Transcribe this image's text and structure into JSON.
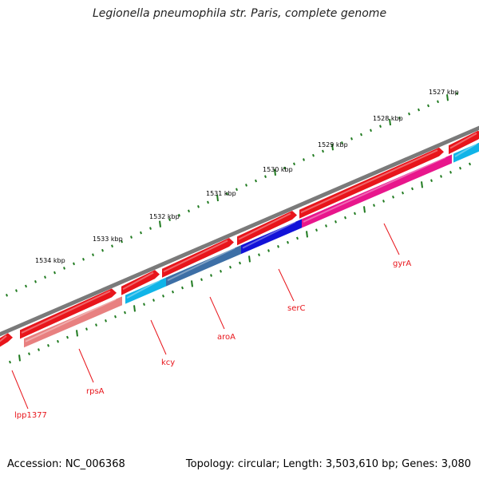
{
  "title": "Legionella pneumophila str. Paris, complete genome",
  "footer": {
    "accession": "Accession: NC_006368",
    "summary": "Topology: circular; Length: 3,503,610 bp; Genes: 3,080"
  },
  "scale": {
    "unit": "kbp",
    "labels": [
      "1527 kbp",
      "1528 kbp",
      "1529 kbp",
      "1530 kbp",
      "1531 kbp",
      "1532 kbp",
      "1533 kbp",
      "1534 kbp"
    ]
  },
  "genes": [
    {
      "name": "lpp1377",
      "color": "#e8151b"
    },
    {
      "name": "rpsA",
      "color": "#e8151b"
    },
    {
      "name": "kcy",
      "color": "#e8151b"
    },
    {
      "name": "aroA",
      "color": "#e8151b"
    },
    {
      "name": "serC",
      "color": "#e8151b"
    },
    {
      "name": "gyrA",
      "color": "#e8151b"
    }
  ],
  "colors": {
    "backbone": "#7a7a7a",
    "forward_cds": "#e8151b",
    "reverse_light_red": "#e88080",
    "reverse_cyan": "#10b4e8",
    "reverse_steel_blue": "#3d6fa6",
    "reverse_blue": "#1212d8",
    "reverse_magenta": "#e8168c",
    "tick": "#1f7a1f",
    "label_line": "#e8151b"
  }
}
